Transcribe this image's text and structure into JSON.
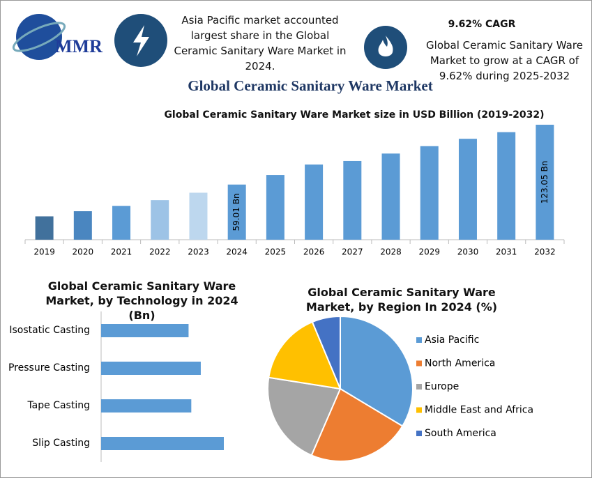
{
  "header": {
    "logo": "MMR",
    "left_note": "Asia Pacific market accounted largest share in the Global Ceramic Sanitary Ware Market in 2024.",
    "cagr": "9.62% CAGR",
    "right_note": "Global Ceramic Sanitary Ware Market to grow at a CAGR of 9.62% during 2025-2032",
    "title": "Global Ceramic Sanitary Ware Market"
  },
  "chart_data": [
    {
      "type": "bar",
      "title": "Global Ceramic Sanitary Ware Market size in USD Billion (2019-2032)",
      "categories": [
        "2019",
        "2020",
        "2021",
        "2022",
        "2023",
        "2024",
        "2025",
        "2026",
        "2027",
        "2028",
        "2029",
        "2030",
        "2031",
        "2032"
      ],
      "values": [
        25.0,
        30.5,
        36.1,
        42.4,
        50.3,
        59.01,
        69.3,
        80.4,
        84.3,
        92.2,
        100.1,
        108.0,
        115.1,
        123.05
      ],
      "value_labels": [
        null,
        null,
        null,
        null,
        null,
        "59.01 Bn",
        null,
        null,
        null,
        null,
        null,
        null,
        null,
        "123.05 Bn"
      ],
      "colors": [
        "#41719c",
        "#4a86c0",
        "#5b9bd5",
        "#9dc3e6",
        "#bdd7ee",
        "#5b9bd5",
        "#5b9bd5",
        "#5b9bd5",
        "#5b9bd5",
        "#5b9bd5",
        "#5b9bd5",
        "#5b9bd5",
        "#5b9bd5",
        "#5b9bd5"
      ]
    },
    {
      "type": "bar",
      "horizontal": true,
      "title": "Global Ceramic Sanitary Ware Market, by Technology in 2024 (Bn)",
      "categories": [
        "Isostatic Casting",
        "Pressure Casting",
        "Tape Casting",
        "Slip Casting"
      ],
      "values": [
        12.9,
        14.7,
        13.3,
        18.1
      ],
      "color": "#5b9bd5"
    },
    {
      "type": "pie",
      "title": "Global Ceramic Sanitary Ware Market, by Region In 2024 (%)",
      "categories": [
        "Asia Pacific",
        "North America",
        "Europe",
        "Middle East and Africa",
        "South America"
      ],
      "values": [
        33.6,
        22.9,
        21.0,
        16.2,
        6.3
      ],
      "colors": [
        "#5b9bd5",
        "#ed7d31",
        "#a5a5a5",
        "#ffc000",
        "#4472c4"
      ],
      "legend": "right"
    }
  ]
}
